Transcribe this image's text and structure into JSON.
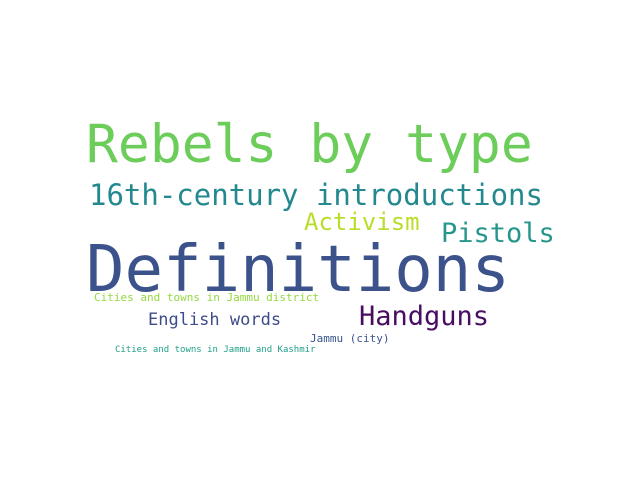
{
  "words": [
    {
      "text": "Rebels by type",
      "color": "#6ccd5a"
    },
    {
      "text": "16th-century introductions",
      "color": "#23898e"
    },
    {
      "text": "Activism",
      "color": "#b8de29"
    },
    {
      "text": "Pistols",
      "color": "#25968b"
    },
    {
      "text": "Definitions",
      "color": "#3b528b"
    },
    {
      "text": "Cities and towns in Jammu district",
      "color": "#95d840"
    },
    {
      "text": "Handguns",
      "color": "#470d60"
    },
    {
      "text": "English words",
      "color": "#3e4c8a"
    },
    {
      "text": "Jammu (city)",
      "color": "#3a548c"
    },
    {
      "text": "Cities and towns in Jammu and Kashmir",
      "color": "#1fa088"
    }
  ]
}
